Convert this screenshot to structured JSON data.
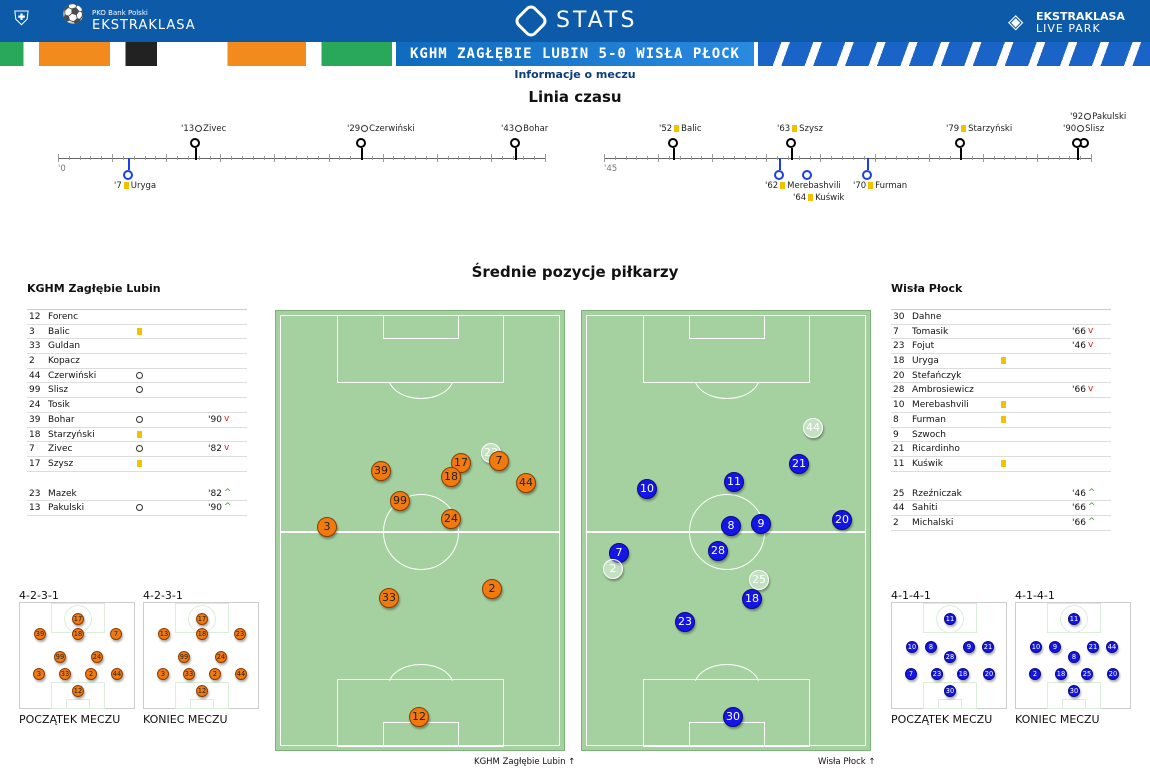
{
  "header": {
    "pko_line1": "PKO Bank Polski",
    "pko_line2": "EKSTRAKLASA",
    "stats": "STATS",
    "live_line1": "EKSTRAKLASA",
    "live_line2": "LIVE PARK"
  },
  "match_title": "KGHM ZAGŁĘBIE LUBIN 5-0 WISŁA PŁOCK",
  "info_link": "Informacje o meczu",
  "timeline": {
    "title": "Linia czasu",
    "start1": "'0",
    "start2": "'45",
    "events": [
      {
        "min": "'13",
        "name": "Zivec",
        "kind": "goal",
        "team": "home"
      },
      {
        "min": "'29",
        "name": "Czerwiński",
        "kind": "goal",
        "team": "home"
      },
      {
        "min": "'43",
        "name": "Bohar",
        "kind": "goal",
        "team": "home"
      },
      {
        "min": "'7",
        "name": "Uryga",
        "kind": "yellow",
        "team": "away"
      },
      {
        "min": "'52",
        "name": "Balic",
        "kind": "yellow",
        "team": "home"
      },
      {
        "min": "'63",
        "name": "Szysz",
        "kind": "yellow",
        "team": "home"
      },
      {
        "min": "'79",
        "name": "Starzyński",
        "kind": "yellow",
        "team": "home"
      },
      {
        "min": "'92",
        "name": "Pakulski",
        "kind": "goal",
        "team": "home"
      },
      {
        "min": "'90",
        "name": "Slisz",
        "kind": "goal",
        "team": "home"
      },
      {
        "min": "'62",
        "name": "Merebashvili",
        "kind": "yellow",
        "team": "away"
      },
      {
        "min": "'64",
        "name": "Kuświk",
        "kind": "yellow",
        "team": "away"
      },
      {
        "min": "'70",
        "name": "Furman",
        "kind": "yellow",
        "team": "away"
      }
    ]
  },
  "positions_title": "Średnie pozycje piłkarzy",
  "home": {
    "name": "KGHM Zagłębie Lubin",
    "starters": [
      {
        "num": "12",
        "name": "Forenc",
        "ev": "",
        "time": ""
      },
      {
        "num": "3",
        "name": "Balic",
        "ev": "yellow",
        "time": ""
      },
      {
        "num": "33",
        "name": "Guldan",
        "ev": "",
        "time": ""
      },
      {
        "num": "2",
        "name": "Kopacz",
        "ev": "",
        "time": ""
      },
      {
        "num": "44",
        "name": "Czerwiński",
        "ev": "goal",
        "time": ""
      },
      {
        "num": "99",
        "name": "Slisz",
        "ev": "goal",
        "time": ""
      },
      {
        "num": "24",
        "name": "Tosik",
        "ev": "",
        "time": ""
      },
      {
        "num": "39",
        "name": "Bohar",
        "ev": "goal",
        "time": "'90",
        "dir": "down"
      },
      {
        "num": "18",
        "name": "Starzyński",
        "ev": "yellow",
        "time": ""
      },
      {
        "num": "7",
        "name": "Zivec",
        "ev": "goal",
        "time": "'82",
        "dir": "down"
      },
      {
        "num": "17",
        "name": "Szysz",
        "ev": "yellow",
        "time": ""
      }
    ],
    "subs": [
      {
        "num": "23",
        "name": "Mazek",
        "ev": "",
        "time": "'82",
        "dir": "up"
      },
      {
        "num": "13",
        "name": "Pakulski",
        "ev": "goal",
        "time": "'90",
        "dir": "up"
      }
    ],
    "formation_start": "4-2-3-1",
    "formation_end": "4-2-3-1",
    "footer": "KGHM Zagłębie Lubin"
  },
  "away": {
    "name": "Wisła Płock",
    "starters": [
      {
        "num": "30",
        "name": "Dahne",
        "ev": "",
        "time": ""
      },
      {
        "num": "7",
        "name": "Tomasik",
        "ev": "",
        "time": "'66",
        "dir": "down"
      },
      {
        "num": "23",
        "name": "Fojut",
        "ev": "",
        "time": "'46",
        "dir": "down"
      },
      {
        "num": "18",
        "name": "Uryga",
        "ev": "yellow",
        "time": ""
      },
      {
        "num": "20",
        "name": "Stefańczyk",
        "ev": "",
        "time": ""
      },
      {
        "num": "28",
        "name": "Ambrosiewicz",
        "ev": "",
        "time": "'66",
        "dir": "down"
      },
      {
        "num": "10",
        "name": "Merebashvili",
        "ev": "yellow",
        "time": ""
      },
      {
        "num": "8",
        "name": "Furman",
        "ev": "yellow",
        "time": ""
      },
      {
        "num": "9",
        "name": "Szwoch",
        "ev": "",
        "time": ""
      },
      {
        "num": "21",
        "name": "Ricardinho",
        "ev": "",
        "time": ""
      },
      {
        "num": "11",
        "name": "Kuświk",
        "ev": "yellow",
        "time": ""
      }
    ],
    "subs": [
      {
        "num": "25",
        "name": "Rzeźniczak",
        "ev": "",
        "time": "'46",
        "dir": "up"
      },
      {
        "num": "44",
        "name": "Sahiti",
        "ev": "",
        "time": "'66",
        "dir": "up"
      },
      {
        "num": "2",
        "name": "Michalski",
        "ev": "",
        "time": "'66",
        "dir": "up"
      }
    ],
    "formation_start": "4-1-4-1",
    "formation_end": "4-1-4-1",
    "footer": "Wisła Płock"
  },
  "labels": {
    "start": "POCZĄTEK MECZU",
    "end": "KONIEC MECZU"
  },
  "colors": {
    "home": "#f07a10",
    "away": "#1416e6",
    "header": "#0c5aa8"
  }
}
